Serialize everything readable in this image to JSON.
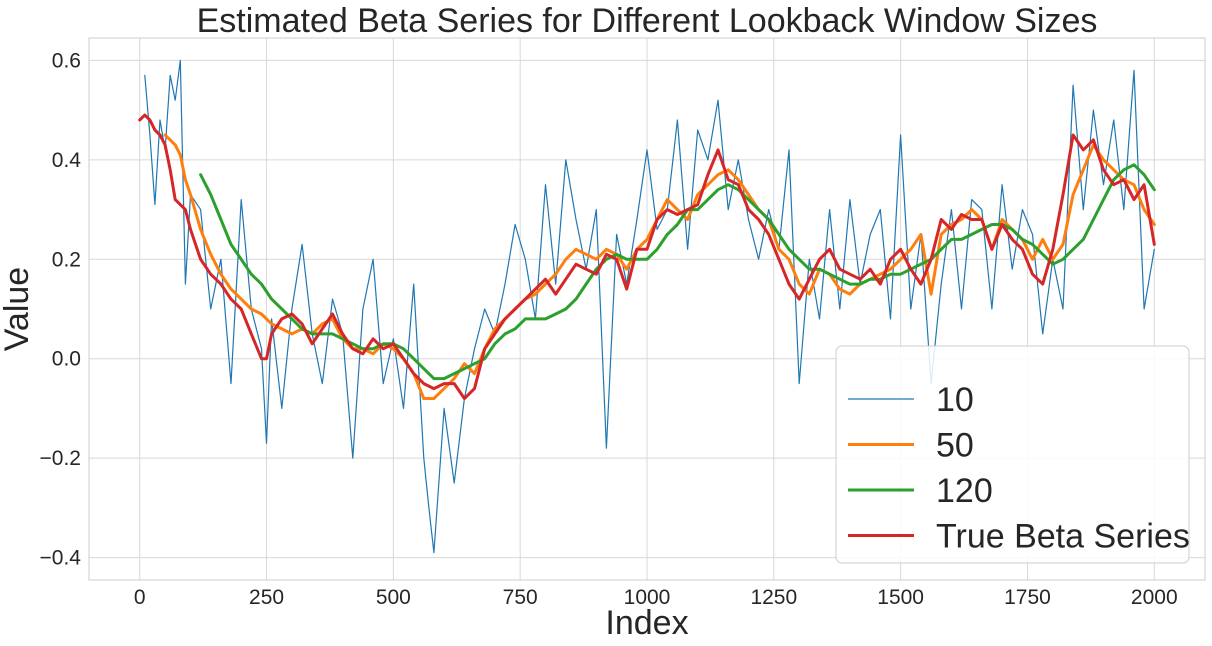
{
  "chart_data": {
    "type": "line",
    "title": "Estimated Beta Series for Different Lookback Window Sizes",
    "xlabel": "Index",
    "ylabel": "Value",
    "xlim": [
      -100,
      2100
    ],
    "ylim": [
      -0.445,
      0.645
    ],
    "xticks": [
      0,
      250,
      500,
      750,
      1000,
      1250,
      1500,
      1750,
      2000
    ],
    "yticks": [
      -0.4,
      -0.2,
      0.0,
      0.2,
      0.4,
      0.6
    ],
    "ytick_labels": [
      "−0.4",
      "−0.2",
      "0.0",
      "0.2",
      "0.4",
      "0.6"
    ],
    "grid": true,
    "legend_position": "lower-right",
    "series": [
      {
        "name": "10",
        "color": "#1f77b4",
        "x": [
          10,
          20,
          30,
          40,
          50,
          60,
          70,
          80,
          90,
          100,
          120,
          140,
          160,
          180,
          200,
          220,
          240,
          250,
          260,
          280,
          300,
          320,
          340,
          360,
          380,
          400,
          420,
          440,
          460,
          480,
          500,
          520,
          540,
          560,
          570,
          580,
          600,
          620,
          640,
          660,
          680,
          700,
          720,
          740,
          760,
          780,
          800,
          820,
          840,
          860,
          880,
          900,
          920,
          940,
          960,
          980,
          1000,
          1020,
          1040,
          1060,
          1080,
          1100,
          1120,
          1140,
          1160,
          1180,
          1200,
          1220,
          1240,
          1260,
          1280,
          1300,
          1320,
          1340,
          1360,
          1380,
          1400,
          1420,
          1440,
          1460,
          1480,
          1500,
          1520,
          1540,
          1560,
          1580,
          1600,
          1620,
          1640,
          1660,
          1680,
          1700,
          1720,
          1740,
          1760,
          1780,
          1800,
          1820,
          1840,
          1860,
          1880,
          1900,
          1920,
          1940,
          1960,
          1980,
          2000
        ],
        "values": [
          0.57,
          0.45,
          0.31,
          0.48,
          0.42,
          0.57,
          0.52,
          0.6,
          0.15,
          0.33,
          0.3,
          0.1,
          0.2,
          -0.05,
          0.32,
          0.1,
          0.02,
          -0.17,
          0.08,
          -0.1,
          0.1,
          0.23,
          0.05,
          -0.05,
          0.12,
          0.05,
          -0.2,
          0.1,
          0.2,
          -0.05,
          0.04,
          -0.1,
          0.15,
          -0.2,
          -0.3,
          -0.39,
          -0.1,
          -0.25,
          -0.08,
          0.02,
          0.1,
          0.05,
          0.15,
          0.27,
          0.2,
          0.08,
          0.35,
          0.15,
          0.4,
          0.28,
          0.18,
          0.3,
          -0.18,
          0.25,
          0.15,
          0.28,
          0.42,
          0.26,
          0.3,
          0.48,
          0.22,
          0.46,
          0.4,
          0.52,
          0.3,
          0.4,
          0.28,
          0.2,
          0.3,
          0.22,
          0.42,
          -0.05,
          0.2,
          0.08,
          0.3,
          0.1,
          0.32,
          0.15,
          0.25,
          0.3,
          0.08,
          0.45,
          0.1,
          0.25,
          -0.05,
          0.15,
          0.3,
          0.1,
          0.32,
          0.3,
          0.1,
          0.35,
          0.18,
          0.3,
          0.25,
          0.05,
          0.2,
          0.1,
          0.55,
          0.3,
          0.5,
          0.35,
          0.48,
          0.3,
          0.58,
          0.1,
          0.22
        ]
      },
      {
        "name": "50",
        "color": "#ff7f0e",
        "x": [
          50,
          60,
          70,
          80,
          90,
          100,
          120,
          140,
          160,
          180,
          200,
          220,
          240,
          260,
          280,
          300,
          320,
          340,
          360,
          380,
          400,
          420,
          440,
          460,
          480,
          500,
          520,
          540,
          560,
          580,
          600,
          620,
          640,
          660,
          680,
          700,
          720,
          740,
          760,
          780,
          800,
          820,
          840,
          860,
          880,
          900,
          920,
          940,
          960,
          980,
          1000,
          1020,
          1040,
          1060,
          1080,
          1100,
          1120,
          1140,
          1160,
          1180,
          1200,
          1220,
          1240,
          1260,
          1280,
          1300,
          1320,
          1340,
          1360,
          1380,
          1400,
          1420,
          1440,
          1460,
          1480,
          1500,
          1520,
          1540,
          1560,
          1580,
          1600,
          1620,
          1640,
          1660,
          1680,
          1700,
          1720,
          1740,
          1760,
          1780,
          1800,
          1820,
          1840,
          1860,
          1880,
          1900,
          1920,
          1940,
          1960,
          1980,
          2000
        ],
        "values": [
          0.45,
          0.44,
          0.43,
          0.41,
          0.36,
          0.33,
          0.26,
          0.21,
          0.17,
          0.14,
          0.12,
          0.1,
          0.09,
          0.07,
          0.06,
          0.05,
          0.06,
          0.05,
          0.07,
          0.08,
          0.04,
          0.02,
          0.02,
          0.01,
          0.03,
          0.02,
          0.0,
          -0.03,
          -0.08,
          -0.08,
          -0.06,
          -0.04,
          -0.01,
          -0.03,
          0.02,
          0.06,
          0.08,
          0.1,
          0.12,
          0.13,
          0.15,
          0.17,
          0.2,
          0.22,
          0.21,
          0.2,
          0.22,
          0.21,
          0.18,
          0.22,
          0.24,
          0.28,
          0.32,
          0.3,
          0.28,
          0.33,
          0.35,
          0.37,
          0.38,
          0.36,
          0.33,
          0.3,
          0.28,
          0.22,
          0.2,
          0.15,
          0.13,
          0.18,
          0.17,
          0.14,
          0.13,
          0.15,
          0.16,
          0.17,
          0.18,
          0.2,
          0.22,
          0.25,
          0.13,
          0.25,
          0.27,
          0.28,
          0.3,
          0.28,
          0.22,
          0.28,
          0.26,
          0.24,
          0.2,
          0.24,
          0.2,
          0.23,
          0.33,
          0.38,
          0.43,
          0.4,
          0.38,
          0.36,
          0.35,
          0.3,
          0.27
        ]
      },
      {
        "name": "120",
        "color": "#2ca02c",
        "x": [
          120,
          140,
          160,
          180,
          200,
          220,
          240,
          260,
          280,
          300,
          320,
          340,
          360,
          380,
          400,
          420,
          440,
          460,
          480,
          500,
          520,
          540,
          560,
          580,
          600,
          620,
          640,
          660,
          680,
          700,
          720,
          740,
          760,
          780,
          800,
          820,
          840,
          860,
          880,
          900,
          920,
          940,
          960,
          980,
          1000,
          1020,
          1040,
          1060,
          1080,
          1100,
          1120,
          1140,
          1160,
          1180,
          1200,
          1220,
          1240,
          1260,
          1280,
          1300,
          1320,
          1340,
          1360,
          1380,
          1400,
          1420,
          1440,
          1460,
          1480,
          1500,
          1520,
          1540,
          1560,
          1580,
          1600,
          1620,
          1640,
          1660,
          1680,
          1700,
          1720,
          1740,
          1760,
          1780,
          1800,
          1820,
          1840,
          1860,
          1880,
          1900,
          1920,
          1940,
          1960,
          1980,
          2000
        ],
        "values": [
          0.37,
          0.33,
          0.28,
          0.23,
          0.2,
          0.17,
          0.15,
          0.12,
          0.1,
          0.08,
          0.06,
          0.05,
          0.05,
          0.05,
          0.04,
          0.03,
          0.02,
          0.02,
          0.03,
          0.03,
          0.02,
          0.0,
          -0.02,
          -0.04,
          -0.04,
          -0.03,
          -0.02,
          -0.01,
          0.0,
          0.03,
          0.05,
          0.06,
          0.08,
          0.08,
          0.08,
          0.09,
          0.1,
          0.12,
          0.15,
          0.18,
          0.2,
          0.21,
          0.2,
          0.2,
          0.2,
          0.22,
          0.25,
          0.27,
          0.3,
          0.3,
          0.32,
          0.34,
          0.35,
          0.34,
          0.32,
          0.3,
          0.28,
          0.25,
          0.22,
          0.2,
          0.18,
          0.18,
          0.17,
          0.16,
          0.15,
          0.15,
          0.16,
          0.16,
          0.17,
          0.17,
          0.18,
          0.19,
          0.2,
          0.22,
          0.24,
          0.24,
          0.25,
          0.26,
          0.27,
          0.27,
          0.26,
          0.24,
          0.23,
          0.21,
          0.19,
          0.2,
          0.22,
          0.24,
          0.28,
          0.32,
          0.36,
          0.38,
          0.39,
          0.37,
          0.34
        ]
      },
      {
        "name": "True Beta Series",
        "color": "#d62728",
        "x": [
          0,
          10,
          20,
          30,
          40,
          50,
          60,
          70,
          80,
          90,
          100,
          120,
          140,
          160,
          180,
          200,
          220,
          240,
          250,
          260,
          280,
          300,
          320,
          340,
          360,
          380,
          400,
          420,
          440,
          460,
          480,
          500,
          520,
          540,
          560,
          580,
          600,
          620,
          640,
          660,
          680,
          700,
          720,
          740,
          760,
          780,
          800,
          820,
          840,
          860,
          880,
          900,
          920,
          940,
          960,
          980,
          1000,
          1020,
          1040,
          1060,
          1080,
          1100,
          1120,
          1140,
          1160,
          1180,
          1200,
          1220,
          1240,
          1260,
          1280,
          1300,
          1320,
          1340,
          1360,
          1380,
          1400,
          1420,
          1440,
          1460,
          1480,
          1500,
          1520,
          1540,
          1560,
          1580,
          1600,
          1620,
          1640,
          1660,
          1680,
          1700,
          1720,
          1740,
          1760,
          1780,
          1800,
          1820,
          1840,
          1860,
          1880,
          1900,
          1920,
          1940,
          1960,
          1980,
          2000
        ],
        "values": [
          0.48,
          0.49,
          0.48,
          0.46,
          0.45,
          0.43,
          0.38,
          0.32,
          0.31,
          0.3,
          0.26,
          0.2,
          0.17,
          0.15,
          0.12,
          0.1,
          0.05,
          0.0,
          0.0,
          0.05,
          0.08,
          0.09,
          0.07,
          0.03,
          0.06,
          0.09,
          0.05,
          0.02,
          0.01,
          0.04,
          0.02,
          0.03,
          0.0,
          -0.03,
          -0.05,
          -0.06,
          -0.05,
          -0.05,
          -0.08,
          -0.06,
          0.02,
          0.05,
          0.08,
          0.1,
          0.12,
          0.14,
          0.16,
          0.13,
          0.16,
          0.19,
          0.18,
          0.17,
          0.21,
          0.2,
          0.14,
          0.22,
          0.22,
          0.28,
          0.3,
          0.29,
          0.3,
          0.31,
          0.37,
          0.42,
          0.36,
          0.35,
          0.3,
          0.28,
          0.25,
          0.2,
          0.15,
          0.12,
          0.16,
          0.2,
          0.22,
          0.18,
          0.17,
          0.16,
          0.18,
          0.15,
          0.2,
          0.22,
          0.18,
          0.15,
          0.2,
          0.28,
          0.26,
          0.29,
          0.28,
          0.28,
          0.22,
          0.27,
          0.24,
          0.22,
          0.17,
          0.15,
          0.22,
          0.33,
          0.45,
          0.42,
          0.44,
          0.38,
          0.35,
          0.36,
          0.32,
          0.35,
          0.23
        ]
      }
    ]
  }
}
